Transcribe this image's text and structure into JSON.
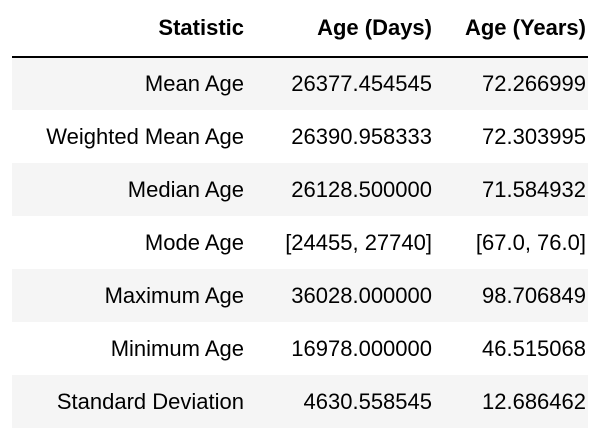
{
  "table": {
    "columns": [
      "Statistic",
      "Age (Days)",
      "Age (Years)"
    ],
    "rows": [
      {
        "statistic": "Mean Age",
        "days": "26377.454545",
        "years": "72.266999"
      },
      {
        "statistic": "Weighted Mean Age",
        "days": "26390.958333",
        "years": "72.303995"
      },
      {
        "statistic": "Median Age",
        "days": "26128.500000",
        "years": "71.584932"
      },
      {
        "statistic": "Mode Age",
        "days": "[24455, 27740]",
        "years": "[67.0, 76.0]"
      },
      {
        "statistic": "Maximum Age",
        "days": "36028.000000",
        "years": "98.706849"
      },
      {
        "statistic": "Minimum Age",
        "days": "16978.000000",
        "years": "46.515068"
      },
      {
        "statistic": "Standard Deviation",
        "days": "4630.558545",
        "years": "12.686462"
      }
    ]
  }
}
